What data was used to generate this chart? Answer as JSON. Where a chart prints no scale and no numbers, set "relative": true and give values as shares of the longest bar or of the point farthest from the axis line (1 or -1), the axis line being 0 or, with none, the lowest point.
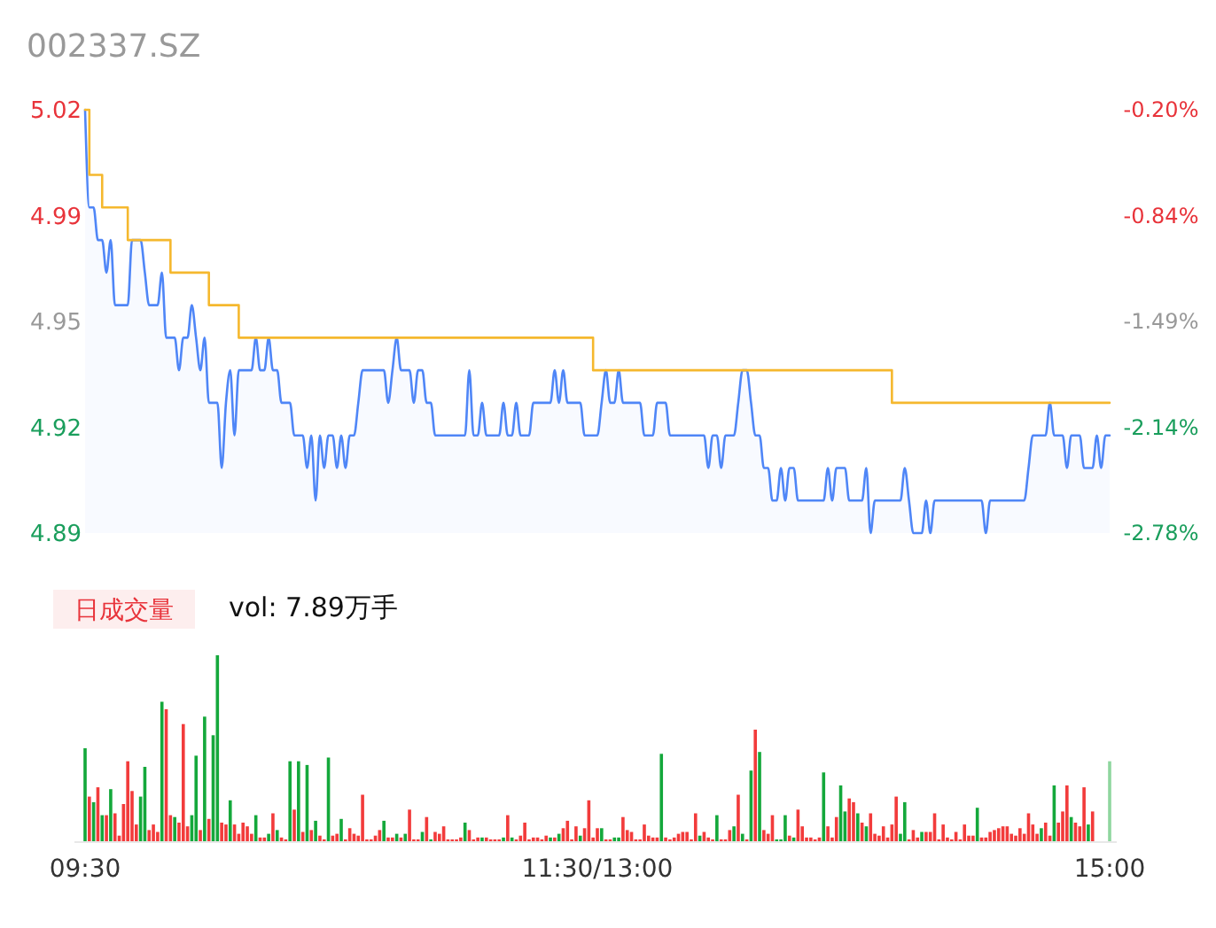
{
  "chart_data": [
    {
      "type": "area",
      "title": "002337.SZ",
      "ylim": [
        4.89,
        5.02
      ],
      "categories": [
        null,
        null,
        null,
        null,
        null,
        null,
        null,
        null,
        null,
        null,
        null,
        null,
        null,
        null,
        null,
        null,
        null,
        null,
        null,
        null,
        null,
        null,
        null,
        null,
        null,
        null,
        null,
        null,
        null,
        null,
        null,
        null,
        null,
        null,
        null,
        null,
        null,
        null,
        null,
        null,
        null,
        null,
        null,
        null,
        null,
        null,
        null,
        null,
        null,
        null,
        null,
        null,
        null,
        null,
        null,
        null,
        null,
        null,
        null,
        null,
        null,
        null,
        null,
        null,
        null,
        null,
        null,
        null,
        null,
        null,
        null,
        null,
        null,
        null,
        null,
        null,
        null,
        null,
        null,
        null,
        null,
        null,
        null,
        null,
        null,
        null,
        null,
        null,
        null,
        null,
        null,
        null,
        null,
        null,
        null,
        null,
        null,
        null,
        null,
        null,
        null,
        null,
        null,
        null,
        null,
        null,
        null,
        null,
        null,
        null,
        null,
        null,
        null,
        null,
        null,
        null,
        null,
        null,
        null,
        null,
        null,
        null,
        null,
        null,
        null,
        null,
        null,
        null,
        null,
        null,
        null,
        null,
        null,
        null,
        null,
        null,
        null,
        null,
        null,
        null,
        null,
        null,
        null,
        null,
        null,
        null,
        null,
        null,
        null,
        null,
        null,
        null,
        null,
        null,
        null,
        null,
        null,
        null,
        null,
        null,
        null,
        null,
        null,
        null,
        null,
        null,
        null,
        null,
        null,
        null,
        null,
        null,
        null,
        null,
        null,
        null,
        null,
        null,
        null,
        null,
        null,
        null,
        null,
        null,
        null,
        null,
        null,
        null,
        null,
        null,
        null,
        null,
        null,
        null,
        null,
        null,
        null,
        null,
        null,
        null,
        null,
        null,
        null,
        null,
        null,
        null,
        null,
        null,
        null,
        null,
        null,
        null,
        null,
        null,
        null,
        null,
        null,
        null,
        null,
        null,
        null,
        null,
        null,
        null,
        null,
        null,
        null,
        null,
        null,
        null,
        null,
        null,
        null,
        null,
        null,
        null,
        null,
        null,
        null,
        null,
        null
      ],
      "yticks": [
        {
          "value": 4.89,
          "label": "4.89"
        },
        {
          "value": 4.9225,
          "label": "4.92"
        },
        {
          "value": 4.955,
          "label": "4.95"
        },
        {
          "value": 4.9875,
          "label": "4.99"
        },
        {
          "value": 5.02,
          "label": "5.02"
        }
      ],
      "y2lim": [
        -2.78,
        -0.2
      ],
      "y2ticks": [
        {
          "value": -2.78,
          "label": "-2.78%"
        },
        {
          "value": -2.135,
          "label": "-2.14%"
        },
        {
          "value": -1.49,
          "label": "-1.49%"
        },
        {
          "value": -0.845,
          "label": "-0.84%"
        },
        {
          "value": -0.2,
          "label": "-0.20%"
        }
      ],
      "series": [
        {
          "type": "area",
          "color": "#4f86f7",
          "values": [
            5.02,
            4.99,
            4.99,
            4.98,
            4.98,
            4.97,
            4.98,
            4.96,
            4.96,
            4.96,
            4.96,
            4.98,
            4.98,
            4.98,
            4.97,
            4.96,
            4.96,
            4.96,
            4.97,
            4.95,
            4.95,
            4.95,
            4.94,
            4.95,
            4.95,
            4.96,
            4.95,
            4.94,
            4.95,
            4.93,
            4.93,
            4.93,
            4.91,
            4.93,
            4.94,
            4.92,
            4.94,
            4.94,
            4.94,
            4.94,
            4.95,
            4.94,
            4.94,
            4.95,
            4.94,
            4.94,
            4.93,
            4.93,
            4.93,
            4.92,
            4.92,
            4.92,
            4.91,
            4.92,
            4.9,
            4.92,
            4.91,
            4.92,
            4.92,
            4.91,
            4.92,
            4.91,
            4.92,
            4.92,
            4.93,
            4.94,
            4.94,
            4.94,
            4.94,
            4.94,
            4.94,
            4.93,
            4.94,
            4.95,
            4.94,
            4.94,
            4.94,
            4.93,
            4.94,
            4.94,
            4.93,
            4.93,
            4.92,
            4.92,
            4.92,
            4.92,
            4.92,
            4.92,
            4.92,
            4.92,
            4.94,
            4.92,
            4.92,
            4.93,
            4.92,
            4.92,
            4.92,
            4.92,
            4.93,
            4.92,
            4.92,
            4.93,
            4.92,
            4.92,
            4.92,
            4.93,
            4.93,
            4.93,
            4.93,
            4.93,
            4.94,
            4.93,
            4.94,
            4.93,
            4.93,
            4.93,
            4.93,
            4.92,
            4.92,
            4.92,
            4.92,
            4.93,
            4.94,
            4.93,
            4.93,
            4.94,
            4.93,
            4.93,
            4.93,
            4.93,
            4.93,
            4.92,
            4.92,
            4.92,
            4.93,
            4.93,
            4.93,
            4.92,
            4.92,
            4.92,
            4.92,
            4.92,
            4.92,
            4.92,
            4.92,
            4.92,
            4.91,
            4.92,
            4.92,
            4.91,
            4.92,
            4.92,
            4.92,
            4.93,
            4.94,
            4.94,
            4.93,
            4.92,
            4.92,
            4.91,
            4.91,
            4.9,
            4.9,
            4.91,
            4.9,
            4.91,
            4.91,
            4.9,
            4.9,
            4.9,
            4.9,
            4.9,
            4.9,
            4.9,
            4.91,
            4.9,
            4.91,
            4.91,
            4.91,
            4.9,
            4.9,
            4.9,
            4.9,
            4.91,
            4.89,
            4.9,
            4.9,
            4.9,
            4.9,
            4.9,
            4.9,
            4.9,
            4.91,
            4.9,
            4.89,
            4.89,
            4.89,
            4.9,
            4.89,
            4.9,
            4.9,
            4.9,
            4.9,
            4.9,
            4.9,
            4.9,
            4.9,
            4.9,
            4.9,
            4.9,
            4.9,
            4.89,
            4.9,
            4.9,
            4.9,
            4.9,
            4.9,
            4.9,
            4.9,
            4.9,
            4.9,
            4.91,
            4.92,
            4.92,
            4.92,
            4.92,
            4.93,
            4.92,
            4.92,
            4.92,
            4.91,
            4.92,
            4.92,
            4.92,
            4.91,
            4.91,
            4.91,
            4.92,
            4.91,
            4.92,
            4.92
          ]
        },
        {
          "type": "line",
          "color": "#f5b82e",
          "values": [
            5.02,
            5.0,
            5.0,
            5.0,
            4.99,
            4.99,
            4.99,
            4.99,
            4.99,
            4.99,
            4.98,
            4.98,
            4.98,
            4.98,
            4.98,
            4.98,
            4.98,
            4.98,
            4.98,
            4.98,
            4.97,
            4.97,
            4.97,
            4.97,
            4.97,
            4.97,
            4.97,
            4.97,
            4.97,
            4.96,
            4.96,
            4.96,
            4.96,
            4.96,
            4.96,
            4.96,
            4.95,
            4.95,
            4.95,
            4.95,
            4.95,
            4.95,
            4.95,
            4.95,
            4.95,
            4.95,
            4.95,
            4.95,
            4.95,
            4.95,
            4.95,
            4.95,
            4.95,
            4.95,
            4.95,
            4.95,
            4.95,
            4.95,
            4.95,
            4.95,
            4.95,
            4.95,
            4.95,
            4.95,
            4.95,
            4.95,
            4.95,
            4.95,
            4.95,
            4.95,
            4.95,
            4.95,
            4.95,
            4.95,
            4.95,
            4.95,
            4.95,
            4.95,
            4.95,
            4.95,
            4.95,
            4.95,
            4.95,
            4.95,
            4.95,
            4.95,
            4.95,
            4.95,
            4.95,
            4.95,
            4.95,
            4.95,
            4.95,
            4.95,
            4.95,
            4.95,
            4.95,
            4.95,
            4.95,
            4.95,
            4.95,
            4.95,
            4.95,
            4.95,
            4.95,
            4.95,
            4.95,
            4.95,
            4.95,
            4.95,
            4.95,
            4.95,
            4.95,
            4.95,
            4.95,
            4.95,
            4.95,
            4.95,
            4.95,
            4.94,
            4.94,
            4.94,
            4.94,
            4.94,
            4.94,
            4.94,
            4.94,
            4.94,
            4.94,
            4.94,
            4.94,
            4.94,
            4.94,
            4.94,
            4.94,
            4.94,
            4.94,
            4.94,
            4.94,
            4.94,
            4.94,
            4.94,
            4.94,
            4.94,
            4.94,
            4.94,
            4.94,
            4.94,
            4.94,
            4.94,
            4.94,
            4.94,
            4.94,
            4.94,
            4.94,
            4.94,
            4.94,
            4.94,
            4.94,
            4.94,
            4.94,
            4.94,
            4.94,
            4.94,
            4.94,
            4.94,
            4.94,
            4.94,
            4.94,
            4.94,
            4.94,
            4.94,
            4.94,
            4.94,
            4.94,
            4.94,
            4.94,
            4.94,
            4.94,
            4.94,
            4.94,
            4.94,
            4.94,
            4.94,
            4.94,
            4.94,
            4.94,
            4.94,
            4.94,
            4.93,
            4.93,
            4.93,
            4.93,
            4.93,
            4.93,
            4.93,
            4.93,
            4.93,
            4.93,
            4.93,
            4.93,
            4.93,
            4.93,
            4.93,
            4.93,
            4.93,
            4.93,
            4.93,
            4.93,
            4.93,
            4.93,
            4.93,
            4.93,
            4.93,
            4.93,
            4.93,
            4.93,
            4.93,
            4.93,
            4.93,
            4.93,
            4.93,
            4.93,
            4.93,
            4.93,
            4.93,
            4.93,
            4.93,
            4.93,
            4.93,
            4.93,
            4.93,
            4.93,
            4.93,
            4.93,
            4.93,
            4.93,
            4.93,
            4.93,
            4.93,
            4.93
          ]
        }
      ]
    },
    {
      "type": "bar",
      "relative": true,
      "annotations": [
        "日成交量",
        "vol: 7.89万手"
      ],
      "categories": [
        "09:30",
        null,
        null,
        null,
        null,
        null,
        null,
        null,
        null,
        null,
        null,
        null,
        null,
        null,
        null,
        null,
        null,
        null,
        null,
        null,
        null,
        null,
        null,
        null,
        null,
        null,
        null,
        null,
        null,
        null,
        null,
        null,
        null,
        null,
        null,
        null,
        null,
        null,
        null,
        null,
        null,
        null,
        null,
        null,
        null,
        null,
        null,
        null,
        null,
        null,
        null,
        null,
        null,
        null,
        null,
        null,
        null,
        null,
        null,
        null,
        null,
        null,
        null,
        null,
        null,
        null,
        null,
        null,
        null,
        null,
        null,
        null,
        null,
        null,
        null,
        null,
        null,
        null,
        null,
        null,
        null,
        null,
        null,
        null,
        null,
        null,
        null,
        null,
        null,
        null,
        null,
        null,
        null,
        null,
        null,
        null,
        null,
        null,
        null,
        null,
        null,
        null,
        null,
        null,
        null,
        null,
        null,
        null,
        null,
        null,
        null,
        null,
        null,
        null,
        null,
        null,
        null,
        null,
        null,
        null,
        "11:30/13:00",
        null,
        null,
        null,
        null,
        null,
        null,
        null,
        null,
        null,
        null,
        null,
        null,
        null,
        null,
        null,
        null,
        null,
        null,
        null,
        null,
        null,
        null,
        null,
        null,
        null,
        null,
        null,
        null,
        null,
        null,
        null,
        null,
        null,
        null,
        null,
        null,
        null,
        null,
        null,
        null,
        null,
        null,
        null,
        null,
        null,
        null,
        null,
        null,
        null,
        null,
        null,
        null,
        null,
        null,
        null,
        null,
        null,
        null,
        null,
        null,
        null,
        null,
        null,
        null,
        null,
        null,
        null,
        null,
        null,
        null,
        null,
        null,
        null,
        null,
        null,
        null,
        null,
        null,
        null,
        null,
        null,
        null,
        null,
        null,
        null,
        null,
        null,
        null,
        null,
        null,
        null,
        null,
        null,
        null,
        null,
        null,
        null,
        null,
        null,
        null,
        null,
        null,
        null,
        null,
        null,
        null,
        null,
        null,
        null,
        null,
        null,
        null,
        null,
        null,
        null,
        null,
        null,
        null,
        null,
        "15:00"
      ],
      "values": [
        0.5,
        0.24,
        0.21,
        0.29,
        0.14,
        0.14,
        0.28,
        0.15,
        0.03,
        0.2,
        0.43,
        0.27,
        0.09,
        0.24,
        0.4,
        0.06,
        0.09,
        0.05,
        0.75,
        0.71,
        0.14,
        0.13,
        0.1,
        0.63,
        0.08,
        0.14,
        0.46,
        0.06,
        0.67,
        0.12,
        0.57,
        1,
        0.1,
        0.09,
        0.22,
        0.09,
        0.04,
        0.1,
        0.08,
        0.04,
        0.14,
        0.02,
        0.02,
        0.04,
        0.15,
        0.06,
        0.02,
        0.01,
        0.43,
        0.17,
        0.43,
        0.05,
        0.41,
        0.06,
        0.11,
        0.03,
        0.01,
        0.45,
        0.03,
        0.04,
        0.12,
        0.01,
        0.07,
        0.04,
        0.03,
        0.25,
        0.01,
        0.01,
        0.03,
        0.06,
        0.11,
        0.02,
        0.02,
        0.04,
        0.02,
        0.04,
        0.17,
        0.01,
        0.01,
        0.05,
        0.13,
        0.01,
        0.05,
        0.04,
        0.08,
        0.01,
        0.01,
        0.01,
        0.02,
        0.1,
        0.06,
        0.01,
        0.02,
        0.02,
        0.02,
        0.01,
        0.01,
        0.01,
        0.02,
        0.14,
        0.02,
        0.01,
        0.03,
        0.1,
        0.01,
        0.02,
        0.02,
        0.01,
        0.03,
        0.02,
        0.02,
        0.04,
        0.07,
        0.11,
        0.01,
        0.08,
        0.03,
        0.07,
        0.22,
        0.02,
        0.07,
        0.07,
        0.01,
        0.01,
        0.02,
        0.02,
        0.13,
        0.06,
        0.05,
        0.01,
        0.01,
        0.09,
        0.03,
        0.02,
        0.02,
        0.47,
        0.02,
        0.01,
        0.02,
        0.04,
        0.05,
        0.05,
        0.01,
        0.15,
        0.03,
        0.05,
        0.02,
        0.01,
        0.14,
        0.01,
        0.01,
        0.06,
        0.08,
        0.25,
        0.04,
        0.01,
        0.38,
        0.6,
        0.48,
        0.06,
        0.04,
        0.14,
        0.01,
        0.01,
        0.14,
        0.03,
        0.02,
        0.17,
        0.08,
        0.02,
        0.02,
        0.01,
        0.02,
        0.37,
        0.08,
        0.02,
        0.13,
        0.3,
        0.16,
        0.23,
        0.21,
        0.15,
        0.1,
        0.08,
        0.15,
        0.04,
        0.03,
        0.08,
        0.02,
        0.09,
        0.24,
        0.04,
        0.21,
        0.01,
        0.06,
        0.02,
        0.05,
        0.05,
        0.05,
        0.15,
        0.01,
        0.09,
        0.02,
        0.01,
        0.05,
        0.01,
        0.09,
        0.03,
        0.03,
        0.18,
        0.02,
        0.02,
        0.05,
        0.06,
        0.07,
        0.08,
        0.08,
        0.04,
        0.03,
        0.07,
        0.04,
        0.15,
        0.09,
        0.04,
        0.07,
        0.1,
        0.03,
        0.3,
        0.1,
        0.16,
        0.3,
        0.13,
        0.1,
        0.08,
        0.29,
        0.09,
        0.16,
        null,
        null,
        null,
        0.43
      ],
      "colors": [
        "#14a83b",
        "#f23b3b",
        "#14a83b",
        "#f23b3b",
        "#14a83b",
        "#f23b3b",
        "#14a83b",
        "#f23b3b",
        "#f23b3b",
        "#f23b3b",
        "#f23b3b",
        "#f23b3b",
        "#f23b3b",
        "#14a83b",
        "#14a83b",
        "#f23b3b",
        "#f23b3b",
        "#f23b3b",
        "#14a83b",
        "#f23b3b",
        "#f23b3b",
        "#14a83b",
        "#f23b3b",
        "#f23b3b",
        "#f23b3b",
        "#14a83b",
        "#14a83b",
        "#f23b3b",
        "#14a83b",
        "#f23b3b",
        "#14a83b",
        "#14a83b",
        "#f23b3b",
        "#f23b3b",
        "#14a83b",
        "#f23b3b",
        "#f23b3b",
        "#f23b3b",
        "#f23b3b",
        "#f23b3b",
        "#14a83b",
        "#f23b3b",
        "#f23b3b",
        "#14a83b",
        "#f23b3b",
        "#14a83b",
        "#f23b3b",
        "#f23b3b",
        "#14a83b",
        "#f23b3b",
        "#14a83b",
        "#f23b3b",
        "#14a83b",
        "#f23b3b",
        "#14a83b",
        "#f23b3b",
        "#f23b3b",
        "#14a83b",
        "#f23b3b",
        "#f23b3b",
        "#14a83b",
        "#f23b3b",
        "#f23b3b",
        "#f23b3b",
        "#f23b3b",
        "#f23b3b",
        "#f23b3b",
        "#f23b3b",
        "#f23b3b",
        "#f23b3b",
        "#14a83b",
        "#f23b3b",
        "#f23b3b",
        "#14a83b",
        "#f23b3b",
        "#14a83b",
        "#f23b3b",
        "#f23b3b",
        "#f23b3b",
        "#14a83b",
        "#f23b3b",
        "#14a83b",
        "#f23b3b",
        "#f23b3b",
        "#f23b3b",
        "#f23b3b",
        "#f23b3b",
        "#f23b3b",
        "#f23b3b",
        "#14a83b",
        "#f23b3b",
        "#f23b3b",
        "#f23b3b",
        "#14a83b",
        "#f23b3b",
        "#f23b3b",
        "#f23b3b",
        "#f23b3b",
        "#14a83b",
        "#f23b3b",
        "#14a83b",
        "#f23b3b",
        "#f23b3b",
        "#f23b3b",
        "#f23b3b",
        "#f23b3b",
        "#f23b3b",
        "#f23b3b",
        "#f23b3b",
        "#14a83b",
        "#f23b3b",
        "#14a83b",
        "#f23b3b",
        "#f23b3b",
        "#f23b3b",
        "#f23b3b",
        "#14a83b",
        "#f23b3b",
        "#f23b3b",
        "#f23b3b",
        "#f23b3b",
        "#14a83b",
        "#f23b3b",
        "#f23b3b",
        "#14a83b",
        "#14a83b",
        "#f23b3b",
        "#f23b3b",
        "#f23b3b",
        "#f23b3b",
        "#f23b3b",
        "#f23b3b",
        "#f23b3b",
        "#f23b3b",
        "#f23b3b",
        "#14a83b",
        "#f23b3b",
        "#f23b3b",
        "#f23b3b",
        "#f23b3b",
        "#f23b3b",
        "#f23b3b",
        "#f23b3b",
        "#f23b3b",
        "#14a83b",
        "#f23b3b",
        "#f23b3b",
        "#f23b3b",
        "#14a83b",
        "#f23b3b",
        "#f23b3b",
        "#f23b3b",
        "#14a83b",
        "#f23b3b",
        "#14a83b",
        "#f23b3b",
        "#14a83b",
        "#f23b3b",
        "#14a83b",
        "#f23b3b",
        "#f23b3b",
        "#f23b3b",
        "#14a83b",
        "#14a83b",
        "#14a83b",
        "#f23b3b",
        "#14a83b",
        "#f23b3b",
        "#f23b3b",
        "#f23b3b",
        "#f23b3b",
        "#f23b3b",
        "#f23b3b",
        "#14a83b",
        "#f23b3b",
        "#f23b3b",
        "#f23b3b",
        "#14a83b",
        "#14a83b",
        "#f23b3b",
        "#f23b3b",
        "#14a83b",
        "#f23b3b",
        "#14a83b",
        "#f23b3b",
        "#f23b3b",
        "#f23b3b",
        "#f23b3b",
        "#f23b3b",
        "#f23b3b",
        "#f23b3b",
        "#14a83b",
        "#14a83b",
        "#f23b3b",
        "#f23b3b",
        "#f23b3b",
        "#14a83b",
        "#f23b3b",
        "#f23b3b",
        "#f23b3b",
        "#f23b3b",
        "#f23b3b",
        "#f23b3b",
        "#f23b3b",
        "#f23b3b",
        "#f23b3b",
        "#f23b3b",
        "#f23b3b",
        "#f23b3b",
        "#14a83b",
        "#f23b3b",
        "#f23b3b",
        "#f23b3b",
        "#f23b3b",
        "#f23b3b",
        "#f23b3b",
        "#f23b3b",
        "#f23b3b",
        "#f23b3b",
        "#f23b3b",
        "#f23b3b",
        "#f23b3b",
        "#f23b3b",
        "#f23b3b",
        "#14a83b",
        "#f23b3b",
        "#f23b3b",
        "#14a83b",
        "#f23b3b",
        "#f23b3b",
        "#f23b3b",
        "#14a83b",
        "#f23b3b",
        "#f23b3b",
        "#f23b3b",
        "#14a83b",
        "#f23b3b",
        null,
        null,
        null,
        "#8fd69f"
      ]
    }
  ]
}
